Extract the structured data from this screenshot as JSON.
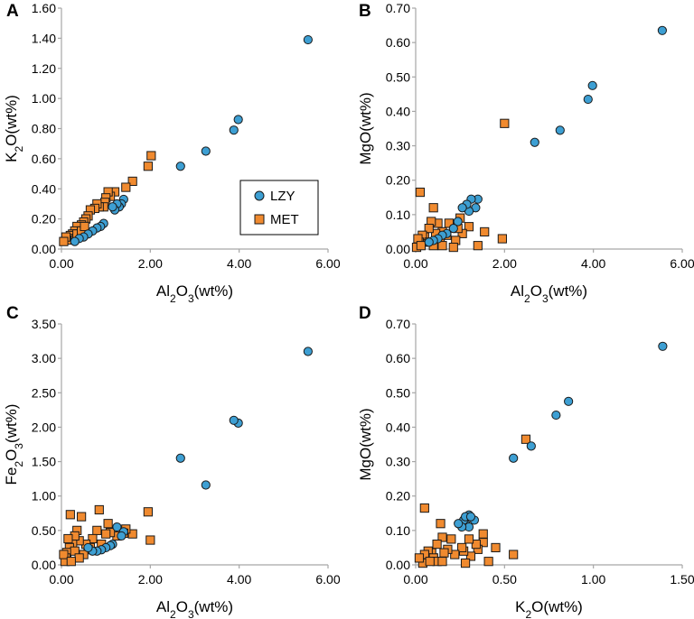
{
  "colors": {
    "lzy_fill": "#3d9fd3",
    "met_fill": "#f08a2f",
    "marker_stroke": "#1a1a1a",
    "axis": "#a6a6a6"
  },
  "legend": {
    "items": [
      {
        "label": "LZY",
        "series": "LZY",
        "shape": "circle"
      },
      {
        "label": "MET",
        "series": "MET",
        "shape": "square"
      }
    ]
  },
  "chart_data": [
    {
      "type": "scatter",
      "panel": "A",
      "title": "",
      "xlabel": {
        "pre": "Al",
        "sub1": "2",
        "mid": "O",
        "sub2": "3",
        "post": "(wt%)"
      },
      "ylabel": {
        "pre": "K",
        "sub1": "2",
        "mid": "O",
        "sub2": "",
        "post": "(wt%)"
      },
      "xlim": [
        0,
        6
      ],
      "ylim": [
        0,
        1.6
      ],
      "xticks": [
        "0.00",
        "2.00",
        "4.00",
        "6.00"
      ],
      "yticks": [
        "0.00",
        "0.20",
        "0.40",
        "0.60",
        "0.80",
        "1.00",
        "1.20",
        "1.40",
        "1.60"
      ],
      "series": [
        {
          "name": "LZY",
          "points": [
            [
              5.55,
              1.39
            ],
            [
              3.98,
              0.86
            ],
            [
              3.88,
              0.79
            ],
            [
              3.25,
              0.65
            ],
            [
              2.68,
              0.55
            ],
            [
              1.4,
              0.33
            ],
            [
              1.35,
              0.3
            ],
            [
              1.3,
              0.28
            ],
            [
              1.25,
              0.3
            ],
            [
              1.2,
              0.26
            ],
            [
              1.15,
              0.28
            ],
            [
              0.95,
              0.17
            ],
            [
              0.88,
              0.15
            ],
            [
              0.8,
              0.14
            ],
            [
              0.7,
              0.12
            ],
            [
              0.6,
              0.1
            ],
            [
              0.5,
              0.08
            ],
            [
              0.4,
              0.07
            ],
            [
              0.3,
              0.05
            ]
          ]
        },
        {
          "name": "MET",
          "points": [
            [
              2.02,
              0.62
            ],
            [
              1.95,
              0.55
            ],
            [
              1.6,
              0.45
            ],
            [
              1.45,
              0.41
            ],
            [
              1.2,
              0.38
            ],
            [
              1.1,
              0.35
            ],
            [
              1.05,
              0.38
            ],
            [
              1.0,
              0.34
            ],
            [
              0.98,
              0.31
            ],
            [
              0.95,
              0.28
            ],
            [
              0.85,
              0.28
            ],
            [
              0.8,
              0.3
            ],
            [
              0.75,
              0.27
            ],
            [
              0.65,
              0.26
            ],
            [
              0.6,
              0.22
            ],
            [
              0.55,
              0.2
            ],
            [
              0.5,
              0.18
            ],
            [
              0.45,
              0.16
            ],
            [
              0.4,
              0.14
            ],
            [
              0.35,
              0.15
            ],
            [
              0.3,
              0.12
            ],
            [
              0.25,
              0.1
            ],
            [
              0.2,
              0.09
            ],
            [
              0.15,
              0.07
            ],
            [
              0.12,
              0.06
            ],
            [
              0.1,
              0.08
            ],
            [
              0.05,
              0.05
            ],
            [
              0.35,
              0.1
            ],
            [
              0.45,
              0.12
            ],
            [
              0.52,
              0.15
            ]
          ]
        }
      ]
    },
    {
      "type": "scatter",
      "panel": "B",
      "title": "",
      "xlabel": {
        "pre": "Al",
        "sub1": "2",
        "mid": "O",
        "sub2": "3",
        "post": "(wt%)"
      },
      "ylabel": {
        "pre": "MgO(wt%)",
        "sub1": "",
        "mid": "",
        "sub2": "",
        "post": ""
      },
      "xlim": [
        0,
        6
      ],
      "ylim": [
        0,
        0.7
      ],
      "xticks": [
        "0.00",
        "2.00",
        "4.00",
        "6.00"
      ],
      "yticks": [
        "0.00",
        "0.10",
        "0.20",
        "0.30",
        "0.40",
        "0.50",
        "0.60",
        "0.70"
      ],
      "series": [
        {
          "name": "LZY",
          "points": [
            [
              5.55,
              0.635
            ],
            [
              3.98,
              0.475
            ],
            [
              3.88,
              0.435
            ],
            [
              3.25,
              0.345
            ],
            [
              2.68,
              0.31
            ],
            [
              1.4,
              0.145
            ],
            [
              1.35,
              0.12
            ],
            [
              1.25,
              0.145
            ],
            [
              1.2,
              0.11
            ],
            [
              1.15,
              0.13
            ],
            [
              1.05,
              0.12
            ],
            [
              0.95,
              0.08
            ],
            [
              0.85,
              0.06
            ],
            [
              0.7,
              0.045
            ],
            [
              0.6,
              0.04
            ],
            [
              0.5,
              0.03
            ],
            [
              0.4,
              0.025
            ],
            [
              0.3,
              0.02
            ]
          ]
        },
        {
          "name": "MET",
          "points": [
            [
              2.0,
              0.365
            ],
            [
              1.95,
              0.03
            ],
            [
              1.55,
              0.05
            ],
            [
              1.4,
              0.01
            ],
            [
              1.2,
              0.065
            ],
            [
              1.05,
              0.045
            ],
            [
              1.0,
              0.09
            ],
            [
              0.95,
              0.06
            ],
            [
              0.9,
              0.025
            ],
            [
              0.85,
              0.005
            ],
            [
              0.75,
              0.075
            ],
            [
              0.7,
              0.04
            ],
            [
              0.6,
              0.05
            ],
            [
              0.55,
              0.03
            ],
            [
              0.5,
              0.075
            ],
            [
              0.45,
              0.045
            ],
            [
              0.4,
              0.12
            ],
            [
              0.35,
              0.08
            ],
            [
              0.3,
              0.06
            ],
            [
              0.25,
              0.02
            ],
            [
              0.2,
              0.035
            ],
            [
              0.15,
              0.04
            ],
            [
              0.1,
              0.165
            ],
            [
              0.08,
              0.02
            ],
            [
              0.05,
              0.03
            ],
            [
              0.3,
              0.02
            ],
            [
              0.4,
              0.01
            ],
            [
              0.6,
              0.01
            ],
            [
              0.02,
              0.005
            ],
            [
              0.12,
              0.01
            ]
          ]
        }
      ]
    },
    {
      "type": "scatter",
      "panel": "C",
      "title": "",
      "xlabel": {
        "pre": "Al",
        "sub1": "2",
        "mid": "O",
        "sub2": "3",
        "post": "(wt%)"
      },
      "ylabel": {
        "pre": "Fe",
        "sub1": "2",
        "mid": "O",
        "sub2": "3",
        "post": "(wt%)"
      },
      "xlim": [
        0,
        6
      ],
      "ylim": [
        0,
        3.5
      ],
      "xticks": [
        "0.00",
        "2.00",
        "4.00",
        "6.00"
      ],
      "yticks": [
        "0.00",
        "0.50",
        "1.00",
        "1.50",
        "2.00",
        "2.50",
        "3.00",
        "3.50"
      ],
      "series": [
        {
          "name": "LZY",
          "points": [
            [
              5.55,
              3.1
            ],
            [
              3.98,
              2.06
            ],
            [
              3.88,
              2.1
            ],
            [
              3.25,
              1.16
            ],
            [
              2.68,
              1.55
            ],
            [
              1.4,
              0.48
            ],
            [
              1.35,
              0.42
            ],
            [
              1.25,
              0.55
            ],
            [
              1.15,
              0.3
            ],
            [
              1.1,
              0.28
            ],
            [
              1.0,
              0.25
            ],
            [
              0.9,
              0.22
            ],
            [
              0.8,
              0.2
            ],
            [
              0.7,
              0.2
            ],
            [
              0.6,
              0.25
            ]
          ]
        },
        {
          "name": "MET",
          "points": [
            [
              1.95,
              0.77
            ],
            [
              2.0,
              0.36
            ],
            [
              1.6,
              0.45
            ],
            [
              1.45,
              0.52
            ],
            [
              1.4,
              0.46
            ],
            [
              1.25,
              0.42
            ],
            [
              1.1,
              0.47
            ],
            [
              1.05,
              0.6
            ],
            [
              1.0,
              0.45
            ],
            [
              0.9,
              0.3
            ],
            [
              0.85,
              0.8
            ],
            [
              0.8,
              0.5
            ],
            [
              0.7,
              0.38
            ],
            [
              0.65,
              0.25
            ],
            [
              0.6,
              0.22
            ],
            [
              0.55,
              0.3
            ],
            [
              0.5,
              0.15
            ],
            [
              0.45,
              0.7
            ],
            [
              0.4,
              0.35
            ],
            [
              0.35,
              0.5
            ],
            [
              0.3,
              0.42
            ],
            [
              0.25,
              0.3
            ],
            [
              0.2,
              0.73
            ],
            [
              0.18,
              0.25
            ],
            [
              0.15,
              0.38
            ],
            [
              0.12,
              0.18
            ],
            [
              0.1,
              0.1
            ],
            [
              0.08,
              0.05
            ],
            [
              0.05,
              0.15
            ],
            [
              0.3,
              0.2
            ],
            [
              0.4,
              0.1
            ],
            [
              0.22,
              0.05
            ]
          ]
        }
      ]
    },
    {
      "type": "scatter",
      "panel": "D",
      "title": "",
      "xlabel": {
        "pre": "K",
        "sub1": "2",
        "mid": "O",
        "sub2": "",
        "post": "(wt%)"
      },
      "ylabel": {
        "pre": "MgO(wt%)",
        "sub1": "",
        "mid": "",
        "sub2": "",
        "post": ""
      },
      "xlim": [
        0,
        1.5
      ],
      "ylim": [
        0,
        0.7
      ],
      "xticks": [
        "0.00",
        "0.50",
        "1.00",
        "1.50"
      ],
      "yticks": [
        "0.00",
        "0.10",
        "0.20",
        "0.30",
        "0.40",
        "0.50",
        "0.60",
        "0.70"
      ],
      "series": [
        {
          "name": "LZY",
          "points": [
            [
              1.39,
              0.635
            ],
            [
              0.86,
              0.475
            ],
            [
              0.79,
              0.435
            ],
            [
              0.65,
              0.345
            ],
            [
              0.55,
              0.31
            ],
            [
              0.33,
              0.13
            ],
            [
              0.3,
              0.145
            ],
            [
              0.28,
              0.12
            ],
            [
              0.3,
              0.11
            ],
            [
              0.27,
              0.13
            ],
            [
              0.26,
              0.11
            ],
            [
              0.28,
              0.14
            ],
            [
              0.24,
              0.12
            ],
            [
              0.31,
              0.14
            ]
          ]
        },
        {
          "name": "MET",
          "points": [
            [
              0.62,
              0.365
            ],
            [
              0.55,
              0.03
            ],
            [
              0.45,
              0.05
            ],
            [
              0.41,
              0.01
            ],
            [
              0.38,
              0.065
            ],
            [
              0.35,
              0.045
            ],
            [
              0.38,
              0.09
            ],
            [
              0.34,
              0.06
            ],
            [
              0.31,
              0.025
            ],
            [
              0.28,
              0.005
            ],
            [
              0.3,
              0.075
            ],
            [
              0.27,
              0.04
            ],
            [
              0.26,
              0.05
            ],
            [
              0.22,
              0.03
            ],
            [
              0.2,
              0.075
            ],
            [
              0.18,
              0.045
            ],
            [
              0.14,
              0.12
            ],
            [
              0.15,
              0.08
            ],
            [
              0.12,
              0.06
            ],
            [
              0.1,
              0.02
            ],
            [
              0.09,
              0.035
            ],
            [
              0.07,
              0.04
            ],
            [
              0.05,
              0.165
            ],
            [
              0.06,
              0.02
            ],
            [
              0.05,
              0.03
            ],
            [
              0.1,
              0.02
            ],
            [
              0.12,
              0.01
            ],
            [
              0.15,
              0.01
            ],
            [
              0.04,
              0.005
            ],
            [
              0.08,
              0.01
            ],
            [
              0.16,
              0.035
            ],
            [
              0.02,
              0.02
            ]
          ]
        }
      ]
    }
  ]
}
